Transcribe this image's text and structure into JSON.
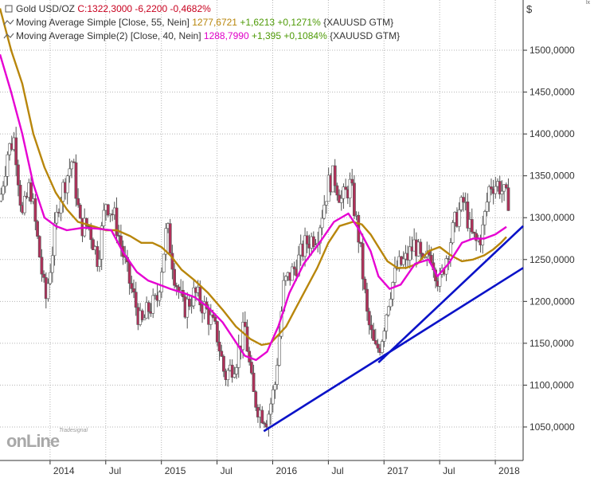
{
  "legend": {
    "main": {
      "name": "Gold USD/OZ",
      "price": "C:1322,3000 -6,2200 -0,4682%"
    },
    "ma1": {
      "name": "Moving Average Simple [Close, 55, Nein]",
      "value": "1277,6721",
      "change": "+1,6213 +0,1271%",
      "symbol": "{XAUUSD GTM}"
    },
    "ma2": {
      "name": "Moving Average Simple(2) [Close, 40, Nein]",
      "value": "1288,7990",
      "change": "+1,395 +0,1084%",
      "symbol": "{XAUUSD GTM}"
    }
  },
  "currency_label": "$",
  "corner_mark": "lx",
  "logo": {
    "small": "Tradesignal",
    "big": "onLine"
  },
  "colors": {
    "candle_up": "#ffffff",
    "candle_down": "#b0305a",
    "ma55": "#b8860b",
    "ma40": "#e600d2",
    "trendline": "#0a12c8",
    "grid": "#b4b4b4"
  },
  "chart_data": {
    "type": "candlestick",
    "title": "Gold USD/OZ",
    "y_axis": {
      "min": 1010,
      "max": 1560,
      "ticks": [
        "1050,0000",
        "1100,0000",
        "1150,0000",
        "1200,0000",
        "1250,0000",
        "1300,0000",
        "1350,0000",
        "1400,0000",
        "1450,0000",
        "1500,0000"
      ],
      "tick_values": [
        1050,
        1100,
        1150,
        1200,
        1250,
        1300,
        1350,
        1400,
        1450,
        1500
      ],
      "position": "right"
    },
    "x_axis": {
      "start": 2013.55,
      "end": 2018.25,
      "ticks": [
        {
          "label": "2014",
          "t": 2014.0
        },
        {
          "label": "Jul",
          "t": 2014.5
        },
        {
          "label": "2015",
          "t": 2015.0
        },
        {
          "label": "Jul",
          "t": 2015.5
        },
        {
          "label": "2016",
          "t": 2016.0
        },
        {
          "label": "Jul",
          "t": 2016.5
        },
        {
          "label": "2017",
          "t": 2017.0
        },
        {
          "label": "Jul",
          "t": 2017.5
        },
        {
          "label": "2018",
          "t": 2018.0
        }
      ]
    },
    "grid": true,
    "price_anchors": [
      [
        2013.55,
        1320
      ],
      [
        2013.62,
        1380
      ],
      [
        2013.68,
        1395
      ],
      [
        2013.75,
        1300
      ],
      [
        2013.82,
        1340
      ],
      [
        2013.9,
        1260
      ],
      [
        2013.96,
        1200
      ],
      [
        2014.0,
        1240
      ],
      [
        2014.08,
        1320
      ],
      [
        2014.2,
        1370
      ],
      [
        2014.27,
        1290
      ],
      [
        2014.35,
        1290
      ],
      [
        2014.43,
        1250
      ],
      [
        2014.5,
        1320
      ],
      [
        2014.58,
        1300
      ],
      [
        2014.7,
        1230
      ],
      [
        2014.82,
        1170
      ],
      [
        2014.88,
        1190
      ],
      [
        2014.96,
        1200
      ],
      [
        2015.05,
        1290
      ],
      [
        2015.12,
        1230
      ],
      [
        2015.2,
        1190
      ],
      [
        2015.3,
        1210
      ],
      [
        2015.4,
        1190
      ],
      [
        2015.5,
        1160
      ],
      [
        2015.57,
        1110
      ],
      [
        2015.67,
        1130
      ],
      [
        2015.75,
        1170
      ],
      [
        2015.82,
        1090
      ],
      [
        2015.88,
        1070
      ],
      [
        2015.95,
        1060
      ],
      [
        2016.02,
        1100
      ],
      [
        2016.1,
        1220
      ],
      [
        2016.2,
        1240
      ],
      [
        2016.3,
        1270
      ],
      [
        2016.4,
        1280
      ],
      [
        2016.5,
        1340
      ],
      [
        2016.55,
        1350
      ],
      [
        2016.62,
        1320
      ],
      [
        2016.7,
        1340
      ],
      [
        2016.78,
        1270
      ],
      [
        2016.85,
        1180
      ],
      [
        2016.92,
        1140
      ],
      [
        2016.97,
        1150
      ],
      [
        2017.05,
        1210
      ],
      [
        2017.12,
        1240
      ],
      [
        2017.2,
        1250
      ],
      [
        2017.28,
        1270
      ],
      [
        2017.35,
        1240
      ],
      [
        2017.42,
        1260
      ],
      [
        2017.5,
        1220
      ],
      [
        2017.57,
        1260
      ],
      [
        2017.65,
        1300
      ],
      [
        2017.72,
        1320
      ],
      [
        2017.78,
        1280
      ],
      [
        2017.83,
        1270
      ],
      [
        2017.88,
        1280
      ],
      [
        2017.95,
        1340
      ],
      [
        2018.03,
        1340
      ],
      [
        2018.1,
        1322
      ]
    ],
    "series": [
      {
        "name": "Moving Average Simple [Close, 55, Nein]",
        "color": "#b8860b",
        "points": [
          [
            2013.55,
            1550
          ],
          [
            2013.65,
            1500
          ],
          [
            2013.75,
            1460
          ],
          [
            2013.85,
            1400
          ],
          [
            2013.95,
            1360
          ],
          [
            2014.05,
            1330
          ],
          [
            2014.15,
            1310
          ],
          [
            2014.25,
            1295
          ],
          [
            2014.38,
            1290
          ],
          [
            2014.5,
            1285
          ],
          [
            2014.6,
            1285
          ],
          [
            2014.72,
            1278
          ],
          [
            2014.82,
            1270
          ],
          [
            2014.92,
            1270
          ],
          [
            2015.0,
            1265
          ],
          [
            2015.08,
            1255
          ],
          [
            2015.18,
            1238
          ],
          [
            2015.3,
            1225
          ],
          [
            2015.42,
            1210
          ],
          [
            2015.55,
            1190
          ],
          [
            2015.67,
            1170
          ],
          [
            2015.8,
            1155
          ],
          [
            2015.9,
            1148
          ],
          [
            2015.98,
            1150
          ],
          [
            2016.05,
            1160
          ],
          [
            2016.12,
            1170
          ],
          [
            2016.2,
            1190
          ],
          [
            2016.3,
            1215
          ],
          [
            2016.4,
            1240
          ],
          [
            2016.5,
            1270
          ],
          [
            2016.6,
            1290
          ],
          [
            2016.72,
            1295
          ],
          [
            2016.8,
            1292
          ],
          [
            2016.88,
            1280
          ],
          [
            2016.95,
            1265
          ],
          [
            2017.03,
            1248
          ],
          [
            2017.12,
            1240
          ],
          [
            2017.2,
            1240
          ],
          [
            2017.3,
            1245
          ],
          [
            2017.4,
            1260
          ],
          [
            2017.5,
            1265
          ],
          [
            2017.6,
            1255
          ],
          [
            2017.7,
            1248
          ],
          [
            2017.8,
            1250
          ],
          [
            2017.9,
            1255
          ],
          [
            2017.98,
            1262
          ],
          [
            2018.05,
            1270
          ],
          [
            2018.1,
            1277
          ]
        ]
      },
      {
        "name": "Moving Average Simple(2) [Close, 40, Nein]",
        "color": "#e600d2",
        "points": [
          [
            2013.55,
            1495
          ],
          [
            2013.65,
            1450
          ],
          [
            2013.75,
            1400
          ],
          [
            2013.85,
            1340
          ],
          [
            2013.95,
            1300
          ],
          [
            2014.05,
            1290
          ],
          [
            2014.15,
            1285
          ],
          [
            2014.3,
            1288
          ],
          [
            2014.42,
            1287
          ],
          [
            2014.55,
            1285
          ],
          [
            2014.65,
            1260
          ],
          [
            2014.78,
            1235
          ],
          [
            2014.88,
            1225
          ],
          [
            2014.98,
            1220
          ],
          [
            2015.08,
            1215
          ],
          [
            2015.2,
            1210
          ],
          [
            2015.3,
            1205
          ],
          [
            2015.42,
            1193
          ],
          [
            2015.55,
            1175
          ],
          [
            2015.65,
            1155
          ],
          [
            2015.75,
            1135
          ],
          [
            2015.85,
            1130
          ],
          [
            2015.95,
            1140
          ],
          [
            2016.05,
            1170
          ],
          [
            2016.15,
            1210
          ],
          [
            2016.28,
            1245
          ],
          [
            2016.42,
            1270
          ],
          [
            2016.55,
            1295
          ],
          [
            2016.68,
            1305
          ],
          [
            2016.78,
            1285
          ],
          [
            2016.88,
            1260
          ],
          [
            2016.95,
            1230
          ],
          [
            2017.05,
            1215
          ],
          [
            2017.15,
            1220
          ],
          [
            2017.28,
            1245
          ],
          [
            2017.4,
            1250
          ],
          [
            2017.48,
            1230
          ],
          [
            2017.58,
            1245
          ],
          [
            2017.7,
            1270
          ],
          [
            2017.8,
            1275
          ],
          [
            2017.9,
            1275
          ],
          [
            2018.0,
            1280
          ],
          [
            2018.1,
            1289
          ]
        ]
      }
    ],
    "trendlines": [
      {
        "points": [
          [
            2015.92,
            1045
          ],
          [
            2018.25,
            1240
          ]
        ],
        "color": "#0a12c8"
      },
      {
        "points": [
          [
            2016.95,
            1127
          ],
          [
            2018.25,
            1290
          ]
        ],
        "color": "#0a12c8"
      }
    ]
  }
}
